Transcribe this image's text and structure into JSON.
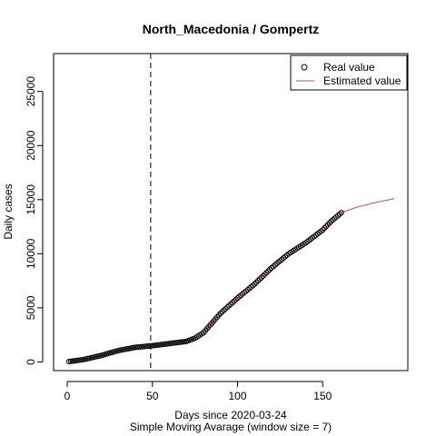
{
  "chart_data": {
    "type": "line",
    "title": "North_Macedonia / Gompertz",
    "xlabel": "Days since 2020-03-24",
    "xlabel2": "Simple Moving Avarage (window size = 7)",
    "ylabel": "Daily cases",
    "xlim": [
      -8,
      200
    ],
    "ylim": [
      -800,
      28500
    ],
    "x_ticks": [
      0,
      50,
      100,
      150
    ],
    "y_ticks": [
      0,
      5000,
      10000,
      15000,
      20000,
      25000
    ],
    "vline_x": 49,
    "grid": false,
    "legend_position": "top-right",
    "legend": [
      {
        "label": "Real value",
        "symbol": "open-circle",
        "color": "#000000"
      },
      {
        "label": "Estimated value",
        "symbol": "line",
        "color": "#C0506A"
      }
    ],
    "series": [
      {
        "name": "Real value",
        "style": "points",
        "color": "#000000",
        "x": [
          1,
          10,
          20,
          30,
          40,
          50,
          60,
          70,
          75,
          80,
          85,
          90,
          100,
          110,
          120,
          130,
          140,
          150,
          155,
          161
        ],
        "y": [
          30,
          230,
          600,
          1050,
          1350,
          1500,
          1700,
          1900,
          2200,
          2700,
          3600,
          4500,
          5900,
          7200,
          8700,
          10000,
          11000,
          12200,
          13000,
          13800
        ]
      },
      {
        "name": "Estimated value",
        "style": "line",
        "color": "#C0506A",
        "x": [
          1,
          10,
          20,
          30,
          40,
          50,
          60,
          70,
          75,
          80,
          85,
          90,
          100,
          110,
          120,
          130,
          140,
          150,
          155,
          161,
          170,
          180,
          192
        ],
        "y": [
          30,
          230,
          600,
          1050,
          1350,
          1500,
          1700,
          1900,
          2200,
          2700,
          3600,
          4500,
          5900,
          7200,
          8700,
          10000,
          11000,
          12200,
          13000,
          13800,
          14300,
          14700,
          15100
        ]
      }
    ]
  }
}
